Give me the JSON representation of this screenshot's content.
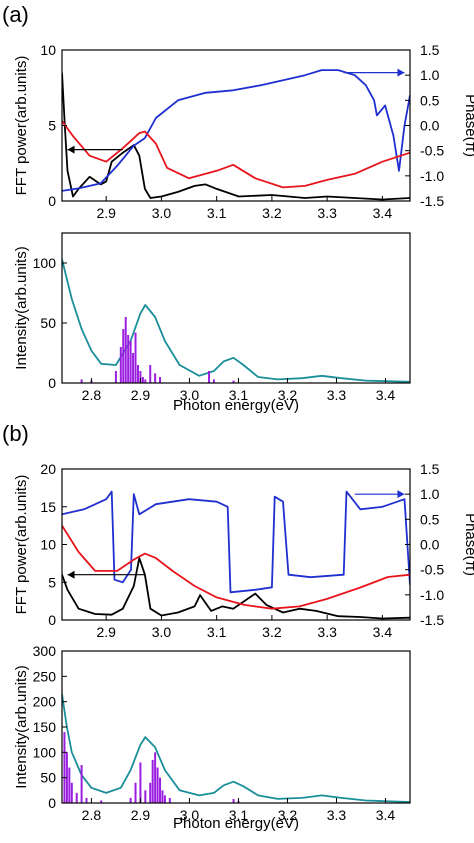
{
  "figure": {
    "panel_labels": [
      "(a)",
      "(b)"
    ]
  },
  "colors": {
    "fft": "#000000",
    "phase": "#1f2fd0",
    "envelope": "#e8141c",
    "spectrum_fit": "#1a8f9a",
    "spectrum_bars": "#9b1fe0"
  },
  "chart_data": [
    {
      "type": "line",
      "panel": "(a)",
      "role": "top",
      "xlabel": "",
      "ylabel": "FFT power(arb.units)",
      "ylabel_right": "Phase(π)",
      "xlim": [
        2.82,
        3.45
      ],
      "ylim": [
        0,
        10
      ],
      "ylim_right": [
        -1.5,
        1.5
      ],
      "x_ticks": [
        2.9,
        3.0,
        3.1,
        3.2,
        3.3,
        3.4
      ],
      "y_ticks": [
        0,
        5,
        10
      ],
      "y_ticks_right": [
        -1.5,
        -1.0,
        -0.5,
        0.0,
        0.5,
        1.0,
        1.5
      ],
      "x_tick_labels": [
        "2.9",
        "3.0",
        "3.1",
        "3.2",
        "3.3",
        "3.4"
      ],
      "y_tick_labels": [
        "0",
        "5",
        "10"
      ],
      "y_tick_labels_right": [
        "-1.5",
        "-1.0",
        "-0.5",
        "0.0",
        "0.5",
        "1.0",
        "1.5"
      ],
      "series": [
        {
          "key": "fft",
          "axis": "left",
          "x": [
            2.82,
            2.825,
            2.83,
            2.84,
            2.85,
            2.87,
            2.89,
            2.9,
            2.91,
            2.93,
            2.95,
            2.96,
            2.97,
            2.98,
            3.0,
            3.03,
            3.06,
            3.08,
            3.1,
            3.14,
            3.2,
            3.26,
            3.3,
            3.35,
            3.4,
            3.45
          ],
          "y": [
            8.5,
            5.0,
            2.0,
            0.3,
            0.8,
            1.6,
            1.1,
            1.3,
            2.6,
            3.2,
            3.7,
            3.0,
            0.8,
            0.2,
            0.3,
            0.6,
            1.0,
            1.1,
            0.8,
            0.3,
            0.4,
            0.2,
            0.3,
            0.2,
            0.1,
            0.2
          ]
        },
        {
          "key": "phase",
          "axis": "right",
          "x": [
            2.82,
            2.85,
            2.89,
            2.92,
            2.95,
            2.97,
            2.99,
            3.03,
            3.08,
            3.13,
            3.18,
            3.22,
            3.26,
            3.29,
            3.32,
            3.35,
            3.37,
            3.385,
            3.39,
            3.405,
            3.42,
            3.43,
            3.44,
            3.45
          ],
          "y": [
            -1.3,
            -1.25,
            -1.15,
            -0.8,
            -0.4,
            -0.25,
            0.15,
            0.5,
            0.65,
            0.7,
            0.8,
            0.9,
            1.0,
            1.1,
            1.1,
            1.0,
            0.8,
            0.5,
            0.2,
            0.4,
            -0.2,
            -0.9,
            0.0,
            0.6
          ]
        },
        {
          "key": "envelope",
          "axis": "left",
          "x": [
            2.82,
            2.84,
            2.87,
            2.9,
            2.93,
            2.96,
            2.97,
            2.99,
            3.01,
            3.05,
            3.1,
            3.13,
            3.17,
            3.22,
            3.26,
            3.3,
            3.35,
            3.4,
            3.45
          ],
          "y": [
            5.3,
            4.3,
            3.0,
            2.6,
            3.5,
            4.5,
            4.6,
            3.8,
            2.2,
            1.5,
            2.0,
            2.4,
            1.5,
            0.9,
            1.0,
            1.4,
            1.8,
            2.6,
            3.2
          ]
        }
      ],
      "annotations": [
        {
          "type": "arrow",
          "axis": "left",
          "from": [
            2.93,
            3.4
          ],
          "to": [
            2.83,
            3.4
          ]
        },
        {
          "type": "arrow",
          "axis": "right",
          "from": [
            3.33,
            1.05
          ],
          "to": [
            3.44,
            1.05
          ]
        }
      ]
    },
    {
      "type": "bar",
      "panel": "(a)",
      "role": "bottom",
      "xlabel": "Photon energy(eV)",
      "ylabel": "Intensity(arb.units)",
      "xlim": [
        2.74,
        3.45
      ],
      "ylim": [
        0,
        125
      ],
      "x_ticks": [
        2.8,
        2.9,
        3.0,
        3.1,
        3.2,
        3.3,
        3.4
      ],
      "y_ticks": [
        0,
        50,
        100
      ],
      "x_tick_labels": [
        "2.8",
        "2.9",
        "3.0",
        "3.1",
        "3.2",
        "3.3",
        "3.4"
      ],
      "y_tick_labels": [
        "0",
        "50",
        "100"
      ],
      "series": [
        {
          "key": "spectrum_fit",
          "x": [
            2.74,
            2.76,
            2.78,
            2.8,
            2.82,
            2.85,
            2.88,
            2.9,
            2.91,
            2.93,
            2.95,
            2.98,
            3.02,
            3.05,
            3.07,
            3.09,
            3.11,
            3.14,
            3.18,
            3.23,
            3.27,
            3.31,
            3.36,
            3.45
          ],
          "y": [
            103,
            70,
            45,
            27,
            16,
            15,
            35,
            58,
            65,
            55,
            35,
            15,
            6,
            10,
            18,
            21,
            15,
            5,
            3,
            4,
            6,
            4,
            2,
            1
          ]
        },
        {
          "key": "spectrum_bars",
          "x": [
            2.78,
            2.8,
            2.85,
            2.86,
            2.865,
            2.87,
            2.875,
            2.88,
            2.885,
            2.89,
            2.895,
            2.9,
            2.905,
            2.91,
            2.92,
            2.93,
            2.94,
            3.04,
            3.05,
            3.09
          ],
          "y": [
            3,
            2,
            10,
            30,
            45,
            55,
            40,
            35,
            25,
            42,
            15,
            10,
            5,
            3,
            15,
            8,
            5,
            10,
            3,
            2
          ]
        }
      ]
    },
    {
      "type": "line",
      "panel": "(b)",
      "role": "top",
      "xlabel": "",
      "ylabel": "FFT power(arb.units)",
      "ylabel_right": "Phase(π)",
      "xlim": [
        2.82,
        3.45
      ],
      "ylim": [
        0,
        20
      ],
      "ylim_right": [
        -1.5,
        1.5
      ],
      "x_ticks": [
        2.9,
        3.0,
        3.1,
        3.2,
        3.3,
        3.4
      ],
      "y_ticks": [
        0,
        5,
        10,
        15,
        20
      ],
      "y_ticks_right": [
        -1.5,
        -1.0,
        -0.5,
        0.0,
        0.5,
        1.0,
        1.5
      ],
      "x_tick_labels": [
        "2.9",
        "3.0",
        "3.1",
        "3.2",
        "3.3",
        "3.4"
      ],
      "y_tick_labels": [
        "0",
        "5",
        "10",
        "15",
        "20"
      ],
      "y_tick_labels_right": [
        "-1.5",
        "-1.0",
        "-0.5",
        "0.0",
        "0.5",
        "1.0",
        "1.5"
      ],
      "series": [
        {
          "key": "fft",
          "axis": "left",
          "x": [
            2.82,
            2.83,
            2.85,
            2.88,
            2.91,
            2.93,
            2.95,
            2.96,
            2.97,
            2.98,
            3.0,
            3.03,
            3.06,
            3.07,
            3.09,
            3.11,
            3.13,
            3.15,
            3.17,
            3.19,
            3.22,
            3.25,
            3.28,
            3.32,
            3.36,
            3.4,
            3.45
          ],
          "y": [
            6.0,
            4.0,
            1.5,
            0.8,
            0.7,
            1.5,
            4.5,
            8.2,
            6.0,
            1.5,
            0.6,
            1.0,
            1.8,
            3.3,
            1.2,
            1.8,
            1.5,
            2.5,
            3.5,
            2.0,
            1.0,
            1.5,
            1.2,
            0.5,
            0.4,
            0.2,
            0.3
          ]
        },
        {
          "key": "phase",
          "axis": "right",
          "x": [
            2.82,
            2.86,
            2.9,
            2.91,
            2.915,
            2.93,
            2.945,
            2.95,
            2.96,
            2.99,
            3.05,
            3.1,
            3.12,
            3.125,
            3.17,
            3.2,
            3.205,
            3.22,
            3.23,
            3.27,
            3.33,
            3.335,
            3.36,
            3.4,
            3.44,
            3.45
          ],
          "y": [
            0.6,
            0.7,
            0.9,
            1.05,
            -0.7,
            -0.75,
            -0.5,
            1.0,
            0.6,
            0.8,
            0.9,
            0.85,
            0.75,
            -0.95,
            -0.9,
            -0.85,
            0.95,
            0.85,
            -0.6,
            -0.65,
            -0.6,
            1.05,
            0.7,
            0.75,
            0.9,
            -0.8
          ]
        },
        {
          "key": "envelope",
          "axis": "left",
          "x": [
            2.82,
            2.85,
            2.88,
            2.92,
            2.95,
            2.97,
            2.99,
            3.02,
            3.06,
            3.1,
            3.15,
            3.2,
            3.25,
            3.3,
            3.36,
            3.41,
            3.45
          ],
          "y": [
            12.5,
            9.0,
            6.5,
            6.5,
            8.0,
            8.8,
            8.2,
            6.5,
            4.5,
            3.0,
            2.0,
            1.5,
            1.8,
            2.8,
            4.3,
            5.7,
            6.0
          ]
        }
      ],
      "annotations": [
        {
          "type": "arrow",
          "axis": "left",
          "from": [
            2.97,
            6.0
          ],
          "to": [
            2.83,
            6.0
          ]
        },
        {
          "type": "arrow",
          "axis": "right",
          "from": [
            3.35,
            1.0
          ],
          "to": [
            3.44,
            1.0
          ]
        }
      ]
    },
    {
      "type": "bar",
      "panel": "(b)",
      "role": "bottom",
      "xlabel": "Photon energy(eV)",
      "ylabel": "Intensity(arb.units)",
      "xlim": [
        2.74,
        3.45
      ],
      "ylim": [
        0,
        300
      ],
      "x_ticks": [
        2.8,
        2.9,
        3.0,
        3.1,
        3.2,
        3.3,
        3.4
      ],
      "y_ticks": [
        0,
        50,
        100,
        150,
        200,
        250,
        300
      ],
      "x_tick_labels": [
        "2.8",
        "2.9",
        "3.0",
        "3.1",
        "3.2",
        "3.3",
        "3.4"
      ],
      "y_tick_labels": [
        "0",
        "50",
        "100",
        "150",
        "200",
        "250",
        "300"
      ],
      "series": [
        {
          "key": "spectrum_fit",
          "x": [
            2.74,
            2.75,
            2.76,
            2.78,
            2.8,
            2.83,
            2.86,
            2.88,
            2.9,
            2.91,
            2.93,
            2.95,
            2.98,
            3.02,
            3.05,
            3.07,
            3.09,
            3.11,
            3.14,
            3.18,
            3.23,
            3.27,
            3.31,
            3.36,
            3.45
          ],
          "y": [
            215,
            150,
            100,
            55,
            30,
            20,
            30,
            65,
            115,
            130,
            110,
            65,
            25,
            15,
            20,
            35,
            42,
            33,
            15,
            8,
            10,
            15,
            10,
            5,
            2
          ]
        },
        {
          "key": "spectrum_bars",
          "x": [
            2.745,
            2.75,
            2.755,
            2.76,
            2.77,
            2.78,
            2.79,
            2.82,
            2.88,
            2.89,
            2.9,
            2.91,
            2.92,
            2.925,
            2.93,
            2.935,
            2.94,
            2.945,
            2.95,
            2.96,
            3.09,
            3.1
          ],
          "y": [
            140,
            100,
            70,
            40,
            20,
            75,
            10,
            5,
            10,
            40,
            80,
            25,
            40,
            85,
            100,
            70,
            50,
            25,
            15,
            10,
            8,
            4
          ]
        }
      ]
    }
  ]
}
